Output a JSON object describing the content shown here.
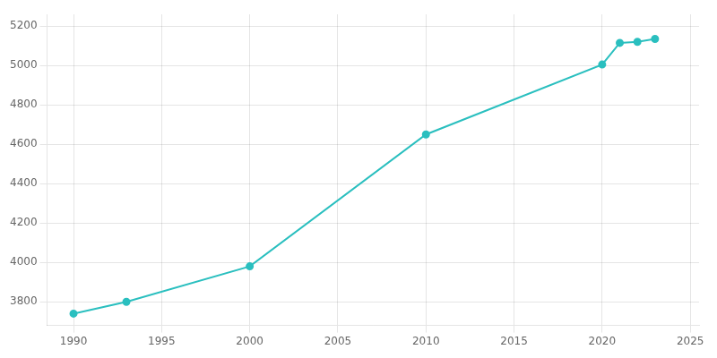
{
  "chart_data": {
    "type": "line",
    "x": [
      1990,
      1993,
      2000,
      2010,
      2020,
      2021,
      2022,
      2023
    ],
    "values": [
      3740,
      3800,
      3980,
      4650,
      5005,
      5115,
      5120,
      5135
    ],
    "color": "#2abfbf",
    "marker": "o",
    "xlim": [
      1988.5,
      2025.5
    ],
    "ylim": [
      3680,
      5260
    ],
    "xticks": [
      1990,
      1995,
      2000,
      2005,
      2010,
      2015,
      2020,
      2025
    ],
    "yticks": [
      3800,
      4000,
      4200,
      4400,
      4600,
      4800,
      5000,
      5200
    ],
    "grid": true
  }
}
